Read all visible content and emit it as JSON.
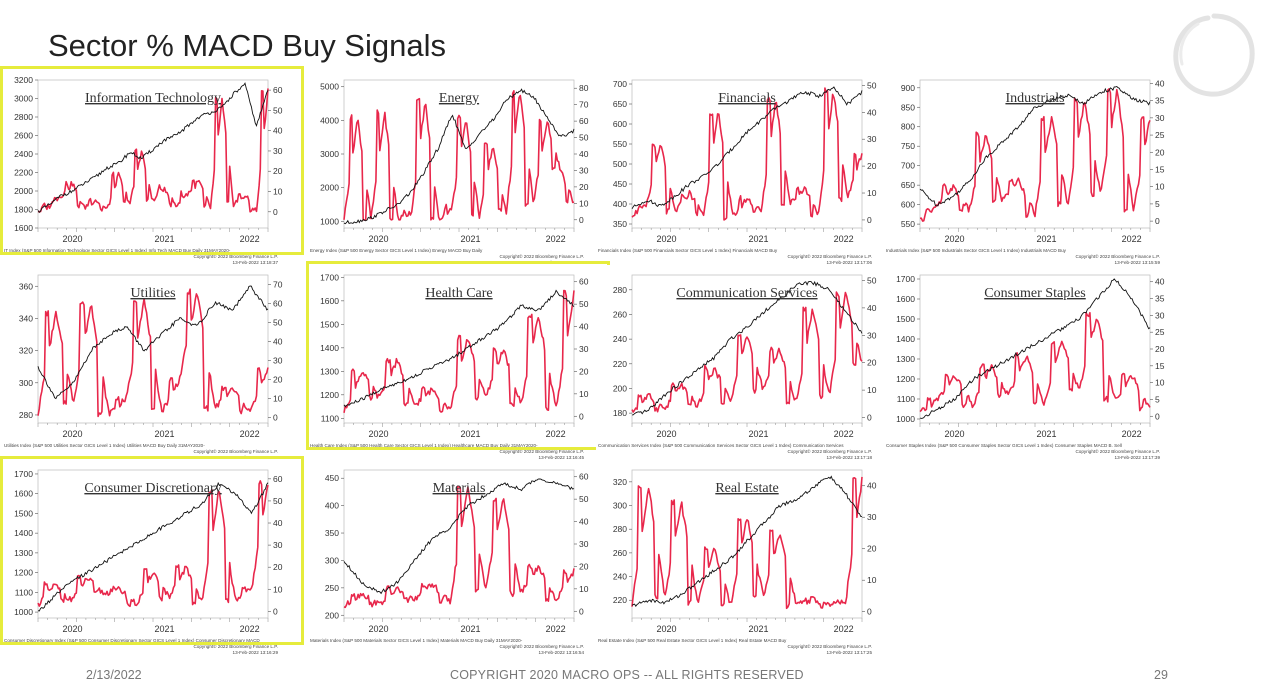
{
  "slide": {
    "title": "Sector % MACD Buy Signals",
    "footer_date": "2/13/2022",
    "footer_copyright": "COPYRIGHT 2020 MACRO OPS -- ALL RIGHTS RESERVED",
    "page_number": "29"
  },
  "colors": {
    "price_line": "#111111",
    "buy_signal_line": "#e8274b",
    "highlight_border": "#e6ec3c"
  },
  "icons": {
    "logo": "circular-brush-stroke-logo"
  },
  "chart_data": [
    {
      "type": "line",
      "title": "Information Technology",
      "highlighted": true,
      "x_ticks": [
        "2020",
        "2021",
        "2022"
      ],
      "left_axis": {
        "ticks": [
          1600,
          1800,
          2000,
          2200,
          2400,
          2600,
          2800,
          3000,
          3200
        ],
        "range": [
          1600,
          3200
        ]
      },
      "right_axis": {
        "ticks": [
          0,
          10,
          20,
          30,
          40,
          50,
          60
        ],
        "range": [
          -8,
          65
        ]
      },
      "series": [
        {
          "axis": "left",
          "values": [
            1780,
            1850,
            1950,
            2000,
            2080,
            2150,
            2250,
            2300,
            2420,
            2350,
            2450,
            2550,
            2600,
            2700,
            2800,
            2850,
            2900,
            3050,
            3150,
            2700,
            3100
          ]
        },
        {
          "axis": "right",
          "values": [
            0,
            3,
            8,
            14,
            2,
            6,
            1,
            18,
            4,
            30,
            5,
            12,
            3,
            9,
            15,
            2,
            55,
            4,
            8,
            0,
            60
          ]
        }
      ],
      "footer_left": "IT Index (S&P 500 Information Technology Sector GICS Level 1 Index) Info Tech MACD Buy  Daily 31MAY2020-",
      "footer_copyright": "Copyright© 2022 Bloomberg Finance L.P.",
      "footer_timestamp": "13-Feb-2022 13:18:37"
    },
    {
      "type": "line",
      "title": "Energy",
      "highlighted": false,
      "x_ticks": [
        "2020",
        "2021",
        "2022"
      ],
      "left_axis": {
        "ticks": [
          1000,
          2000,
          3000,
          4000,
          5000
        ],
        "range": [
          800,
          5200
        ]
      },
      "right_axis": {
        "ticks": [
          0,
          10,
          20,
          30,
          40,
          50,
          60,
          70,
          80
        ],
        "range": [
          -5,
          85
        ]
      },
      "series": [
        {
          "axis": "left",
          "values": [
            950,
            1000,
            1100,
            1300,
            1500,
            1900,
            2500,
            3200,
            4200,
            3100,
            3600,
            4000,
            4600,
            4900,
            4700,
            4100,
            3500,
            3700
          ]
        },
        {
          "axis": "right",
          "values": [
            0,
            62,
            0,
            65,
            0,
            5,
            72,
            0,
            8,
            62,
            2,
            45,
            5,
            78,
            10,
            60,
            30,
            10
          ]
        }
      ],
      "footer_left": "Energy Index (S&P 500 Energy Sector GICS Level 1 Index) Energy MACD Buy  Daily",
      "footer_copyright": "Copyright© 2022 Bloomberg Finance L.P.",
      "footer_timestamp": "13-Feb-2022 13:15:37"
    },
    {
      "type": "line",
      "title": "Financials",
      "highlighted": false,
      "x_ticks": [
        "2020",
        "2021",
        "2022"
      ],
      "left_axis": {
        "ticks": [
          350,
          400,
          450,
          500,
          550,
          600,
          650,
          700
        ],
        "range": [
          340,
          710
        ]
      },
      "right_axis": {
        "ticks": [
          0,
          10,
          20,
          30,
          40,
          50
        ],
        "range": [
          -3,
          52
        ]
      },
      "series": [
        {
          "axis": "left",
          "values": [
            390,
            410,
            395,
            420,
            450,
            470,
            500,
            540,
            580,
            610,
            640,
            660,
            680,
            670,
            690,
            650,
            680
          ]
        },
        {
          "axis": "right",
          "values": [
            2,
            5,
            28,
            3,
            10,
            2,
            40,
            1,
            8,
            3,
            45,
            6,
            12,
            2,
            48,
            8,
            25
          ]
        }
      ],
      "footer_left": "Financials Index (S&P 500 Financials Sector GICS Level 1 Index) Financials MACD Buy",
      "footer_copyright": "Copyright© 2022 Bloomberg Finance L.P.",
      "footer_timestamp": "13-Feb-2022 13:17:06"
    },
    {
      "type": "line",
      "title": "Industrials",
      "highlighted": false,
      "x_ticks": [
        "2020",
        "2021",
        "2022"
      ],
      "left_axis": {
        "ticks": [
          550,
          600,
          650,
          700,
          750,
          800,
          850,
          900
        ],
        "range": [
          540,
          920
        ]
      },
      "right_axis": {
        "ticks": [
          0,
          5,
          10,
          15,
          20,
          25,
          30,
          35,
          40
        ],
        "range": [
          -2,
          41
        ]
      },
      "series": [
        {
          "axis": "left",
          "values": [
            640,
            600,
            620,
            660,
            720,
            760,
            800,
            850,
            870,
            880,
            860,
            890,
            900,
            870,
            860
          ]
        },
        {
          "axis": "right",
          "values": [
            0,
            4,
            10,
            3,
            25,
            6,
            12,
            2,
            30,
            5,
            35,
            8,
            38,
            3,
            30
          ]
        }
      ],
      "footer_left": "Industrials Index (S&P 500 Industrials Sector GICS Level 1 Index) Industrials MACD Buy",
      "footer_copyright": "Copyright© 2022 Bloomberg Finance L.P.",
      "footer_timestamp": "13-Feb-2022 13:15:59"
    },
    {
      "type": "line",
      "title": "Utilities",
      "highlighted": false,
      "x_ticks": [
        "2020",
        "2021",
        "2022"
      ],
      "left_axis": {
        "ticks": [
          280,
          300,
          320,
          340,
          360
        ],
        "range": [
          275,
          367
        ]
      },
      "right_axis": {
        "ticks": [
          0,
          10,
          20,
          30,
          40,
          50,
          60,
          70
        ],
        "range": [
          -3,
          75
        ]
      },
      "series": [
        {
          "axis": "left",
          "values": [
            310,
            290,
            300,
            320,
            330,
            335,
            320,
            330,
            340,
            335,
            350,
            345,
            360,
            345
          ]
        },
        {
          "axis": "right",
          "values": [
            2,
            55,
            8,
            60,
            2,
            10,
            62,
            3,
            20,
            66,
            5,
            15,
            3,
            25
          ]
        }
      ],
      "footer_left": "Utilities Index (S&P 500 Utilities Sector GICS Level 1 Index) Utilities MACD Buy  Daily 31MAY2020-",
      "footer_copyright": "Copyright© 2022 Bloomberg Finance L.P.",
      "footer_timestamp": "13-Feb-2022 13:18:16"
    },
    {
      "type": "line",
      "title": "Health Care",
      "highlighted": true,
      "x_ticks": [
        "2020",
        "2021",
        "2022"
      ],
      "left_axis": {
        "ticks": [
          1100,
          1200,
          1300,
          1400,
          1500,
          1600,
          1700
        ],
        "range": [
          1080,
          1710
        ]
      },
      "right_axis": {
        "ticks": [
          0,
          10,
          20,
          30,
          40,
          50,
          60
        ],
        "range": [
          -3,
          63
        ]
      },
      "series": [
        {
          "axis": "left",
          "values": [
            1150,
            1180,
            1220,
            1250,
            1280,
            1320,
            1350,
            1400,
            1450,
            1500,
            1580,
            1560,
            1640,
            1580
          ]
        },
        {
          "axis": "right",
          "values": [
            2,
            20,
            8,
            25,
            5,
            12,
            3,
            35,
            8,
            30,
            5,
            45,
            3,
            55
          ]
        }
      ],
      "footer_left": "Health Care Index (S&P 500 Health Care Sector GICS Level 1 Index) Healthcare MACD Buy  Daily 31MAY2020-",
      "footer_copyright": "Copyright© 2022 Bloomberg Finance L.P.",
      "footer_timestamp": "13-Feb-2022 13:16:45"
    },
    {
      "type": "line",
      "title": "Communication Services",
      "highlighted": false,
      "x_ticks": [
        "2020",
        "2021",
        "2022"
      ],
      "left_axis": {
        "ticks": [
          180,
          200,
          220,
          240,
          260,
          280
        ],
        "range": [
          172,
          292
        ]
      },
      "right_axis": {
        "ticks": [
          0,
          10,
          20,
          30,
          40,
          50
        ],
        "range": [
          -2,
          52
        ]
      },
      "series": [
        {
          "axis": "left",
          "values": [
            178,
            182,
            195,
            205,
            215,
            225,
            240,
            250,
            262,
            272,
            284,
            286,
            280,
            262,
            245
          ]
        },
        {
          "axis": "right",
          "values": [
            2,
            8,
            3,
            12,
            4,
            18,
            6,
            30,
            10,
            25,
            5,
            40,
            8,
            45,
            20
          ]
        }
      ],
      "footer_left": "Communication Services Index (S&P 500 Communication Services Sector GICS Level 1 Index) Communication Services",
      "footer_copyright": "Copyright© 2022 Bloomberg Finance L.P.",
      "footer_timestamp": "13-Feb-2022 13:17:18"
    },
    {
      "type": "line",
      "title": "Consumer Staples",
      "highlighted": false,
      "x_ticks": [
        "2020",
        "2021",
        "2022"
      ],
      "left_axis": {
        "ticks": [
          1000,
          1100,
          1200,
          1300,
          1400,
          1500,
          1600,
          1700
        ],
        "range": [
          980,
          1720
        ]
      },
      "right_axis": {
        "ticks": [
          0,
          5,
          10,
          15,
          20,
          25,
          30,
          35,
          40
        ],
        "range": [
          -2,
          42
        ]
      },
      "series": [
        {
          "axis": "left",
          "values": [
            1000,
            1050,
            1100,
            1200,
            1250,
            1300,
            1350,
            1400,
            1450,
            1500,
            1600,
            1700,
            1600,
            1450
          ]
        },
        {
          "axis": "right",
          "values": [
            1,
            5,
            12,
            3,
            15,
            6,
            18,
            4,
            22,
            8,
            30,
            5,
            12,
            2
          ]
        }
      ],
      "footer_left": "Consumer Staples Index (S&P 500 Consumer Staples Sector GICS Level 1 Index) Consumer Staples MACD B. Sell",
      "footer_copyright": "Copyright© 2022 Bloomberg Finance L.P.",
      "footer_timestamp": "13-Feb-2022 13:17:39"
    },
    {
      "type": "line",
      "title": "Consumer Discretionary",
      "highlighted": true,
      "x_ticks": [
        "2020",
        "2021",
        "2022"
      ],
      "left_axis": {
        "ticks": [
          1000,
          1100,
          1200,
          1300,
          1400,
          1500,
          1600,
          1700
        ],
        "range": [
          970,
          1720
        ]
      },
      "right_axis": {
        "ticks": [
          0,
          10,
          20,
          30,
          40,
          50,
          60
        ],
        "range": [
          -3,
          64
        ]
      },
      "series": [
        {
          "axis": "left",
          "values": [
            1000,
            1080,
            1150,
            1200,
            1250,
            1300,
            1350,
            1400,
            1450,
            1500,
            1550,
            1650,
            1600,
            1500,
            1650
          ]
        },
        {
          "axis": "right",
          "values": [
            3,
            12,
            5,
            15,
            8,
            10,
            3,
            18,
            6,
            20,
            4,
            55,
            5,
            10,
            58
          ]
        }
      ],
      "footer_left": "Consumer Discretionary Index (S&P 500 Consumer Discretionary Sector GICS Level 1 Index) Consumer Discretionary MACD",
      "footer_copyright": "Copyright© 2022 Bloomberg Finance L.P.",
      "footer_timestamp": "13-Feb-2022 13:16:29"
    },
    {
      "type": "line",
      "title": "Materials",
      "highlighted": false,
      "x_ticks": [
        "2020",
        "2021",
        "2022"
      ],
      "left_axis": {
        "ticks": [
          200,
          250,
          300,
          350,
          400,
          450
        ],
        "range": [
          195,
          465
        ]
      },
      "right_axis": {
        "ticks": [
          0,
          10,
          20,
          30,
          40,
          50,
          60
        ],
        "range": [
          -3,
          63
        ]
      },
      "series": [
        {
          "axis": "left",
          "values": [
            300,
            260,
            240,
            260,
            300,
            340,
            360,
            400,
            420,
            440,
            430,
            450,
            440,
            430
          ]
        },
        {
          "axis": "right",
          "values": [
            2,
            8,
            3,
            10,
            5,
            12,
            4,
            55,
            10,
            50,
            8,
            20,
            5,
            18
          ]
        }
      ],
      "footer_left": "Materials Index (S&P 500 Materials Sector GICS Level 1 Index) Materials MACD Buy  Daily 31MAY2020-",
      "footer_copyright": "Copyright© 2022 Bloomberg Finance L.P.",
      "footer_timestamp": "13-Feb-2022 13:16:54"
    },
    {
      "type": "line",
      "title": "Real Estate",
      "highlighted": false,
      "x_ticks": [
        "2020",
        "2021",
        "2022"
      ],
      "left_axis": {
        "ticks": [
          220,
          240,
          260,
          280,
          300,
          320
        ],
        "range": [
          205,
          330
        ]
      },
      "right_axis": {
        "ticks": [
          0,
          10,
          20,
          30,
          40
        ],
        "range": [
          -2,
          45
        ]
      },
      "series": [
        {
          "axis": "left",
          "values": [
            215,
            220,
            218,
            225,
            235,
            245,
            255,
            270,
            285,
            300,
            305,
            315,
            325,
            310,
            290
          ]
        },
        {
          "axis": "right",
          "values": [
            2,
            40,
            5,
            35,
            3,
            20,
            2,
            30,
            5,
            25,
            2,
            4,
            2,
            3,
            42
          ]
        }
      ],
      "footer_left": "Real Estate Index (S&P 500 Real Estate Sector GICS Level 1 Index) Real Estate MACD Buy",
      "footer_copyright": "Copyright© 2022 Bloomberg Finance L.P.",
      "footer_timestamp": "13-Feb-2022 13:17:25"
    }
  ]
}
